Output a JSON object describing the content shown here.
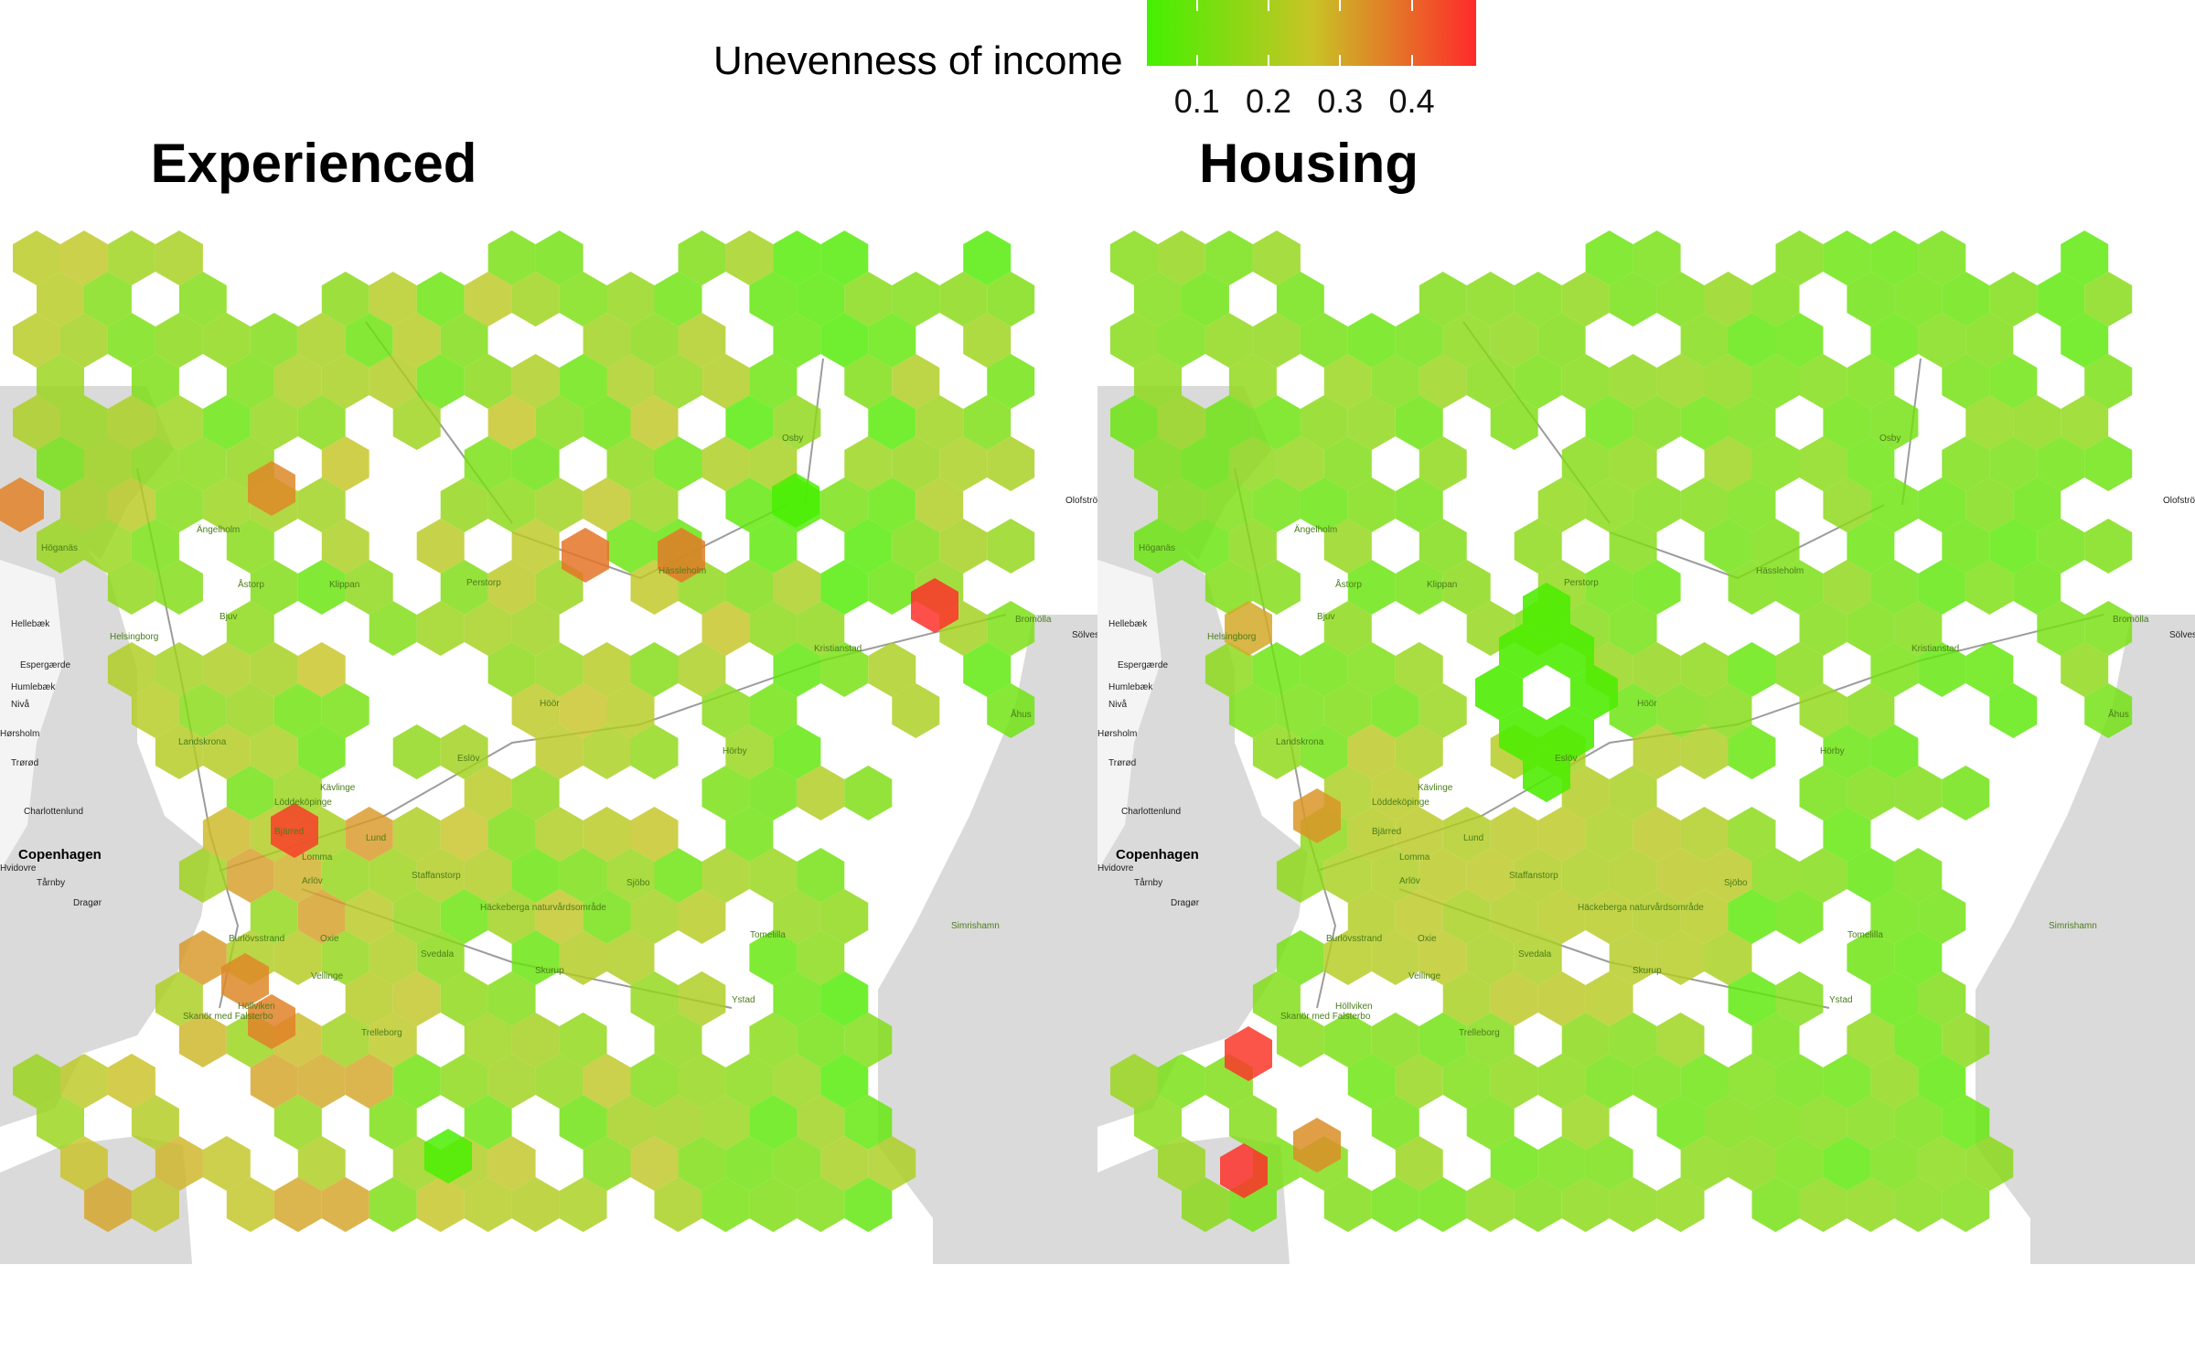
{
  "legend": {
    "title": "Unevenness of income",
    "min": 0.03,
    "max": 0.49,
    "ticks": [
      {
        "value": 0.1,
        "label": "0.1"
      },
      {
        "value": 0.2,
        "label": "0.2"
      },
      {
        "value": 0.3,
        "label": "0.3"
      },
      {
        "value": 0.4,
        "label": "0.4"
      }
    ],
    "colors": [
      "#44f000",
      "#c8c426",
      "#ff2a2a"
    ]
  },
  "panels": [
    {
      "id": "experienced",
      "title": "Experienced",
      "green_ring_hexes": [],
      "red_hexes": [
        "Bjärred",
        "Bromölla"
      ],
      "orange_hexes": [
        "Höganäs",
        "Hässleholm",
        "Landskrona",
        "Höllviken"
      ]
    },
    {
      "id": "housing",
      "title": "Housing",
      "green_ring_hexes": [
        "Kågeröd"
      ],
      "red_hexes": [
        "Landskrona",
        "Höllviken"
      ],
      "orange_hexes": [
        "Bjuv",
        "Burlöv"
      ]
    }
  ],
  "places": {
    "towns": [
      "Ängelholm",
      "Höganäs",
      "Åstorp",
      "Klippan",
      "Perstorp",
      "Hässleholm",
      "Osby",
      "Bjuv",
      "Helsingborg",
      "Kristianstad",
      "Bromölla",
      "Höör",
      "Hörby",
      "Eslöv",
      "Landskrona",
      "Kävlinge",
      "Löddeköpinge",
      "Bjärred",
      "Lund",
      "Lomma",
      "Staffanstorp",
      "Arlöv",
      "Sjöbo",
      "Burlöv",
      "Burlövsstrand",
      "Oxie",
      "Svedala",
      "Vellinge",
      "Skurup",
      "Höllviken",
      "Skanör med Falsterbo",
      "Trelleborg",
      "Ystad",
      "Tomelilla",
      "Simrishamn",
      "Åhus",
      "Skanör",
      "Hörby"
    ],
    "nature_label": "Häckeberga naturvårdsområde",
    "outer": [
      "Olofström",
      "Sölvesborg",
      "Hellebæk",
      "Espergærde",
      "Humlebæk",
      "Nivå",
      "Hørsholm",
      "Trørød",
      "Charlottenlund",
      "Copenhagen",
      "Tårnby",
      "Dragør",
      "Hvidovre",
      "Sölvesborg"
    ]
  }
}
